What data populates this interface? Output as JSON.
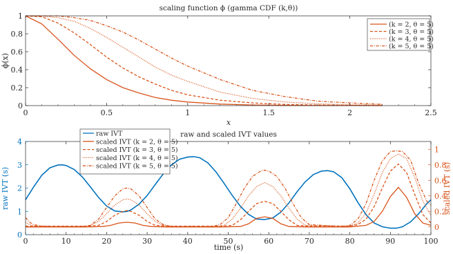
{
  "chart_data": [
    {
      "type": "line",
      "title": "scaling function ϕ (gamma CDF (k,θ))",
      "xlabel": "x",
      "ylabel": "ϕ(x)",
      "xlim": [
        0,
        2.5
      ],
      "ylim": [
        0,
        1
      ],
      "xticks": [
        0,
        0.5,
        1,
        1.5,
        2,
        2.5
      ],
      "yticks": [
        0,
        0.2,
        0.4,
        0.6,
        0.8,
        1
      ],
      "legend": "top-right",
      "grid": false,
      "series": [
        {
          "name": "(k = 2, θ = 5)",
          "style": "solid",
          "k": 2,
          "theta": 5,
          "x": [
            0,
            0.1,
            0.2,
            0.3,
            0.4,
            0.5,
            0.6,
            0.7,
            0.8,
            0.9,
            1.0,
            1.2,
            1.4,
            1.6,
            1.8,
            2.0,
            2.2
          ],
          "y": [
            1,
            0.91,
            0.74,
            0.56,
            0.41,
            0.29,
            0.2,
            0.14,
            0.09,
            0.06,
            0.04,
            0.017,
            0.007,
            0.003,
            0.001,
            0.0005,
            0.0002
          ]
        },
        {
          "name": "(k = 3, θ = 5)",
          "style": "dashed",
          "k": 3,
          "theta": 5,
          "x": [
            0,
            0.1,
            0.2,
            0.3,
            0.4,
            0.5,
            0.6,
            0.7,
            0.8,
            0.9,
            1.0,
            1.2,
            1.4,
            1.6,
            1.8,
            2.0,
            2.2
          ],
          "y": [
            1,
            0.99,
            0.92,
            0.81,
            0.68,
            0.54,
            0.42,
            0.32,
            0.24,
            0.17,
            0.12,
            0.06,
            0.03,
            0.013,
            0.006,
            0.003,
            0.0013
          ]
        },
        {
          "name": "(k = 4, θ = 5)",
          "style": "dotted",
          "k": 4,
          "theta": 5,
          "x": [
            0,
            0.1,
            0.2,
            0.3,
            0.4,
            0.5,
            0.6,
            0.7,
            0.8,
            0.9,
            1.0,
            1.2,
            1.4,
            1.6,
            1.8,
            2.0,
            2.2
          ],
          "y": [
            1,
            1.0,
            0.98,
            0.94,
            0.86,
            0.76,
            0.65,
            0.54,
            0.43,
            0.34,
            0.27,
            0.15,
            0.08,
            0.04,
            0.02,
            0.01,
            0.005
          ]
        },
        {
          "name": "(k = 5, θ = 5)",
          "style": "dashdot",
          "k": 5,
          "theta": 5,
          "x": [
            0,
            0.1,
            0.2,
            0.3,
            0.4,
            0.5,
            0.6,
            0.7,
            0.8,
            0.9,
            1.0,
            1.2,
            1.4,
            1.6,
            1.8,
            2.0,
            2.2
          ],
          "y": [
            1,
            1.0,
            1.0,
            0.98,
            0.95,
            0.89,
            0.82,
            0.73,
            0.63,
            0.53,
            0.44,
            0.29,
            0.17,
            0.1,
            0.05,
            0.03,
            0.015
          ]
        }
      ]
    },
    {
      "type": "line",
      "title": "raw and scaled IVT values",
      "xlabel": "time (s)",
      "ylabel": "raw IVT (s)",
      "y2label": "scaled IVT (s)",
      "xlim": [
        0,
        100
      ],
      "ylim": [
        0,
        4
      ],
      "y2lim": [
        -0.1,
        1.1
      ],
      "xticks": [
        0,
        10,
        20,
        30,
        40,
        50,
        60,
        70,
        80,
        90,
        100
      ],
      "yticks": [
        0,
        1,
        2,
        3,
        4
      ],
      "y2ticks": [
        0,
        0.2,
        0.4,
        0.6,
        0.8,
        1
      ],
      "legend": "top-left",
      "grid": false,
      "series": [
        {
          "name": "raw IVT",
          "axis": "left",
          "style": "solid",
          "color": "#0072BD",
          "x": [
            0,
            2,
            4,
            6,
            8,
            9,
            10,
            12,
            14,
            16,
            18,
            20,
            22,
            24,
            25,
            26,
            28,
            30,
            32,
            34,
            36,
            38,
            40,
            41.5,
            43,
            45,
            47,
            49,
            51,
            53,
            55,
            57,
            59,
            61,
            63,
            65,
            67,
            69,
            71,
            73,
            74.5,
            76,
            78,
            80,
            82,
            84,
            86,
            88,
            90,
            91.5,
            93,
            95,
            97,
            99,
            100
          ],
          "y": [
            1.5,
            2.05,
            2.55,
            2.87,
            2.99,
            3.0,
            2.97,
            2.8,
            2.48,
            2.05,
            1.6,
            1.23,
            1.02,
            0.98,
            1.0,
            1.06,
            1.31,
            1.68,
            2.15,
            2.62,
            3.0,
            3.24,
            3.33,
            3.35,
            3.3,
            3.08,
            2.69,
            2.2,
            1.68,
            1.22,
            0.87,
            0.67,
            0.65,
            0.72,
            0.97,
            1.37,
            1.85,
            2.27,
            2.58,
            2.73,
            2.75,
            2.7,
            2.45,
            1.97,
            1.38,
            0.86,
            0.5,
            0.34,
            0.28,
            0.28,
            0.34,
            0.55,
            0.9,
            1.33,
            1.5
          ]
        },
        {
          "name": "scaled IVT (k = 2, θ = 5)",
          "axis": "right",
          "style": "solid",
          "x": [
            0,
            15,
            19,
            21,
            23,
            25,
            27,
            29,
            31,
            35,
            48,
            53,
            55,
            57,
            59,
            61,
            63,
            65,
            70,
            80,
            84,
            86,
            88,
            90,
            92,
            94,
            96,
            98,
            100
          ],
          "y": [
            0,
            0,
            0.005,
            0.02,
            0.05,
            0.06,
            0.05,
            0.02,
            0.005,
            0,
            0,
            0.005,
            0.04,
            0.11,
            0.13,
            0.11,
            0.04,
            0.005,
            0,
            0,
            0.02,
            0.07,
            0.2,
            0.39,
            0.51,
            0.38,
            0.17,
            0.05,
            0.02
          ]
        },
        {
          "name": "scaled IVT (k = 3, θ = 5)",
          "axis": "right",
          "style": "dashed",
          "x": [
            0,
            15,
            18,
            20,
            22,
            24,
            25,
            26,
            28,
            30,
            32,
            35,
            48,
            51,
            53,
            55,
            57,
            59,
            61,
            63,
            65,
            67,
            70,
            80,
            82,
            84,
            86,
            88,
            90,
            92,
            94,
            96,
            98,
            100
          ],
          "y": [
            0.01,
            0.01,
            0.02,
            0.07,
            0.15,
            0.2,
            0.21,
            0.2,
            0.15,
            0.07,
            0.02,
            0.01,
            0.01,
            0.02,
            0.09,
            0.2,
            0.3,
            0.33,
            0.3,
            0.2,
            0.09,
            0.02,
            0.01,
            0.01,
            0.03,
            0.1,
            0.26,
            0.5,
            0.72,
            0.81,
            0.7,
            0.42,
            0.16,
            0.05
          ]
        },
        {
          "name": "scaled IVT (k = 4, θ = 5)",
          "axis": "right",
          "style": "dotted",
          "x": [
            0,
            1,
            2,
            4,
            14,
            16,
            18,
            20,
            22,
            24,
            25,
            26,
            28,
            30,
            32,
            34,
            36,
            47,
            49,
            51,
            53,
            55,
            57,
            59,
            61,
            63,
            65,
            67,
            69,
            80,
            82,
            84,
            86,
            88,
            90,
            92,
            94,
            96,
            98,
            100
          ],
          "y": [
            0.06,
            0.03,
            0.01,
            0.005,
            0.005,
            0.02,
            0.07,
            0.17,
            0.28,
            0.35,
            0.36,
            0.35,
            0.28,
            0.17,
            0.07,
            0.02,
            0.005,
            0.005,
            0.02,
            0.1,
            0.24,
            0.4,
            0.52,
            0.57,
            0.52,
            0.4,
            0.24,
            0.1,
            0.02,
            0.01,
            0.05,
            0.18,
            0.42,
            0.7,
            0.88,
            0.94,
            0.88,
            0.64,
            0.33,
            0.15
          ]
        },
        {
          "name": "scaled IVT (k = 5, θ = 5)",
          "axis": "right",
          "style": "dashdot",
          "x": [
            0,
            1,
            2,
            4,
            6,
            14,
            16,
            18,
            20,
            22,
            24,
            25,
            26,
            28,
            30,
            32,
            34,
            36,
            46,
            48,
            50,
            52,
            54,
            56,
            58,
            59,
            60,
            62,
            64,
            66,
            68,
            70,
            78,
            80,
            82,
            84,
            86,
            88,
            90,
            91.5,
            93,
            95,
            97,
            99,
            100
          ],
          "y": [
            0.12,
            0.06,
            0.03,
            0.01,
            0.005,
            0.005,
            0.02,
            0.1,
            0.25,
            0.4,
            0.49,
            0.5,
            0.49,
            0.4,
            0.25,
            0.1,
            0.03,
            0.005,
            0.005,
            0.03,
            0.12,
            0.3,
            0.5,
            0.65,
            0.72,
            0.73,
            0.72,
            0.65,
            0.5,
            0.3,
            0.12,
            0.03,
            0.005,
            0.02,
            0.1,
            0.3,
            0.6,
            0.85,
            0.97,
            0.98,
            0.97,
            0.86,
            0.56,
            0.33,
            0.28
          ]
        }
      ]
    }
  ]
}
